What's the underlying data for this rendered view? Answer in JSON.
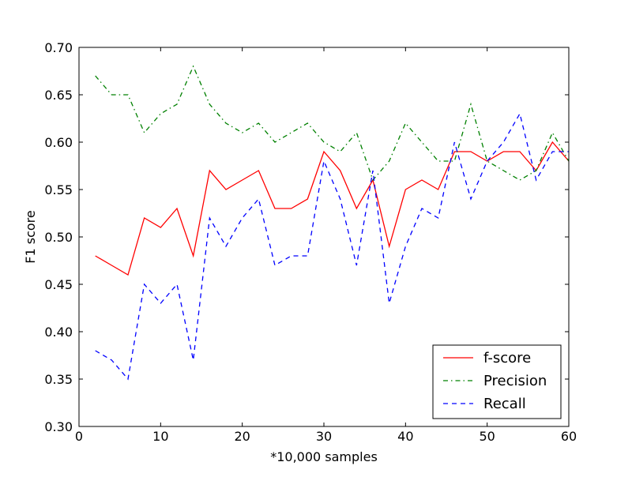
{
  "chart_data": {
    "type": "line",
    "xlabel": "*10,000 samples",
    "ylabel": "F1 score",
    "xlim": [
      0,
      60
    ],
    "ylim": [
      0.3,
      0.7
    ],
    "x_ticks": [
      "0",
      "10",
      "20",
      "30",
      "40",
      "50",
      "60"
    ],
    "y_ticks": [
      "0.30",
      "0.35",
      "0.40",
      "0.45",
      "0.50",
      "0.55",
      "0.60",
      "0.65",
      "0.70"
    ],
    "grid": false,
    "legend_position": "lower-right",
    "x": [
      2,
      4,
      6,
      8,
      10,
      12,
      14,
      16,
      18,
      20,
      22,
      24,
      26,
      28,
      30,
      32,
      34,
      36,
      38,
      40,
      42,
      44,
      46,
      48,
      50,
      52,
      54,
      56,
      58,
      60
    ],
    "series": [
      {
        "name": "f-score",
        "color": "#ff0000",
        "style": "solid",
        "values": [
          0.48,
          0.47,
          0.46,
          0.52,
          0.51,
          0.53,
          0.48,
          0.57,
          0.55,
          0.56,
          0.57,
          0.53,
          0.53,
          0.54,
          0.59,
          0.57,
          0.53,
          0.56,
          0.49,
          0.55,
          0.56,
          0.55,
          0.59,
          0.59,
          0.58,
          0.59,
          0.59,
          0.57,
          0.6,
          0.58
        ]
      },
      {
        "name": "Precision",
        "color": "#008000",
        "style": "dashdot",
        "values": [
          0.67,
          0.65,
          0.65,
          0.61,
          0.63,
          0.64,
          0.68,
          0.64,
          0.62,
          0.61,
          0.62,
          0.6,
          0.61,
          0.62,
          0.6,
          0.59,
          0.61,
          0.56,
          0.58,
          0.62,
          0.6,
          0.58,
          0.58,
          0.64,
          0.58,
          0.57,
          0.56,
          0.57,
          0.61,
          0.58
        ]
      },
      {
        "name": "Recall",
        "color": "#0000ff",
        "style": "dashed",
        "values": [
          0.38,
          0.37,
          0.35,
          0.45,
          0.43,
          0.45,
          0.37,
          0.52,
          0.49,
          0.52,
          0.54,
          0.47,
          0.48,
          0.48,
          0.58,
          0.54,
          0.47,
          0.57,
          0.43,
          0.49,
          0.53,
          0.52,
          0.6,
          0.54,
          0.58,
          0.6,
          0.63,
          0.56,
          0.59,
          0.59
        ]
      }
    ]
  }
}
